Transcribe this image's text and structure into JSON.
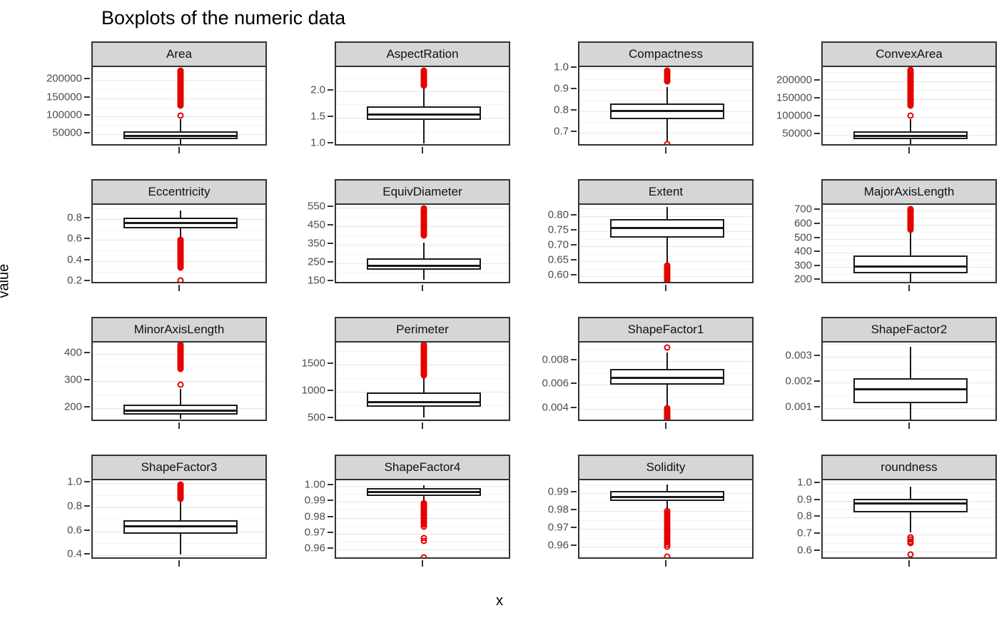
{
  "title": "Boxplots of the numeric data",
  "xlabel": "x",
  "ylabel": "value",
  "chart_data": {
    "type": "boxplot-facets",
    "title": "Boxplots of the numeric data",
    "xlabel": "x",
    "ylabel": "value",
    "layout": {
      "rows": 4,
      "cols": 4,
      "scales": "free_y",
      "grid": true,
      "strip_fill": "#d6d6d6"
    },
    "outlier_color": "#e60000",
    "box_fill": "#ffffff",
    "box_stroke": "#1a1a1a",
    "facets": [
      {
        "name": "Area",
        "range": [
          15000,
          236000
        ],
        "ticks": [
          50000,
          100000,
          150000,
          200000
        ],
        "tick_labels": [
          "50000",
          "100000",
          "150000",
          "200000"
        ],
        "box": {
          "q1": 36500,
          "median": 45500,
          "q3": 58000,
          "whisker_low": 20000,
          "whisker_high": 92000
        },
        "outlier_singles": [
          101000
        ],
        "outlier_clusters": [
          {
            "from": 130000,
            "to": 227000,
            "count": 30
          }
        ]
      },
      {
        "name": "AspectRation",
        "range": [
          0.95,
          2.45
        ],
        "ticks": [
          1.0,
          1.5,
          2.0
        ],
        "tick_labels": [
          "1.0",
          "1.5",
          "2.0"
        ],
        "box": {
          "q1": 1.46,
          "median": 1.555,
          "q3": 1.71,
          "whisker_low": 1.02,
          "whisker_high": 2.07
        },
        "outlier_singles": [],
        "outlier_clusters": [
          {
            "from": 2.1,
            "to": 2.38,
            "count": 18
          }
        ]
      },
      {
        "name": "Compactness",
        "range": [
          0.633,
          1.006
        ],
        "ticks": [
          0.7,
          0.8,
          0.9,
          1.0
        ],
        "tick_labels": [
          "0.7",
          "0.8",
          "0.9",
          "1.0"
        ],
        "box": {
          "q1": 0.762,
          "median": 0.8,
          "q3": 0.835,
          "whisker_low": 0.658,
          "whisker_high": 0.912
        },
        "outlier_singles": [
          0.645
        ],
        "outlier_clusters": [
          {
            "from": 0.939,
            "to": 0.99,
            "count": 10
          }
        ]
      },
      {
        "name": "ConvexArea",
        "range": [
          15000,
          240000
        ],
        "ticks": [
          50000,
          100000,
          150000,
          200000
        ],
        "tick_labels": [
          "50000",
          "100000",
          "150000",
          "200000"
        ],
        "box": {
          "q1": 37000,
          "median": 46500,
          "q3": 60000,
          "whisker_low": 20500,
          "whisker_high": 94000
        },
        "outlier_singles": [
          103500
        ],
        "outlier_clusters": [
          {
            "from": 132000,
            "to": 231000,
            "count": 30
          }
        ]
      },
      {
        "name": "Eccentricity",
        "range": [
          0.175,
          0.935
        ],
        "ticks": [
          0.2,
          0.4,
          0.6,
          0.8
        ],
        "tick_labels": [
          "0.2",
          "0.4",
          "0.6",
          "0.8"
        ],
        "box": {
          "q1": 0.713,
          "median": 0.765,
          "q3": 0.81,
          "whisker_low": 0.62,
          "whisker_high": 0.878
        },
        "outlier_singles": [
          0.219
        ],
        "outlier_clusters": [
          {
            "from": 0.335,
            "to": 0.602,
            "count": 22
          }
        ]
      },
      {
        "name": "EquivDiameter",
        "range": [
          135,
          565
        ],
        "ticks": [
          150,
          250,
          350,
          450,
          550
        ],
        "tick_labels": [
          "150",
          "250",
          "350",
          "450",
          "550"
        ],
        "box": {
          "q1": 215,
          "median": 238,
          "q3": 277,
          "whisker_low": 161,
          "whisker_high": 360
        },
        "outlier_singles": [],
        "outlier_clusters": [
          {
            "from": 400,
            "to": 546,
            "count": 25
          }
        ]
      },
      {
        "name": "Extent",
        "range": [
          0.572,
          0.838
        ],
        "ticks": [
          0.6,
          0.65,
          0.7,
          0.75,
          0.8
        ],
        "tick_labels": [
          "0.60",
          "0.65",
          "0.70",
          "0.75",
          "0.80"
        ],
        "box": {
          "q1": 0.729,
          "median": 0.76,
          "q3": 0.79,
          "whisker_low": 0.642,
          "whisker_high": 0.832
        },
        "outlier_singles": [],
        "outlier_clusters": [
          {
            "from": 0.585,
            "to": 0.637,
            "count": 12
          }
        ]
      },
      {
        "name": "MajorAxisLength",
        "range": [
          172,
          742
        ],
        "ticks": [
          200,
          300,
          400,
          500,
          600,
          700
        ],
        "tick_labels": [
          "200",
          "300",
          "400",
          "500",
          "600",
          "700"
        ],
        "box": {
          "q1": 254,
          "median": 303,
          "q3": 381,
          "whisker_low": 184,
          "whisker_high": 560
        },
        "outlier_singles": [],
        "outlier_clusters": [
          {
            "from": 563,
            "to": 713,
            "count": 22
          }
        ]
      },
      {
        "name": "MinorAxisLength",
        "range": [
          148,
          442
        ],
        "ticks": [
          200,
          300,
          400
        ],
        "tick_labels": [
          "200",
          "300",
          "400"
        ],
        "box": {
          "q1": 176,
          "median": 192,
          "q3": 213,
          "whisker_low": 160,
          "whisker_high": 271
        },
        "outlier_singles": [
          287
        ],
        "outlier_clusters": [
          {
            "from": 346,
            "to": 433,
            "count": 20
          }
        ]
      },
      {
        "name": "Perimeter",
        "range": [
          430,
          1905
        ],
        "ticks": [
          500,
          1000,
          1500
        ],
        "tick_labels": [
          "500",
          "1000",
          "1500"
        ],
        "box": {
          "q1": 715,
          "median": 800,
          "q3": 978,
          "whisker_low": 524,
          "whisker_high": 1265
        },
        "outlier_singles": [],
        "outlier_clusters": [
          {
            "from": 1300,
            "to": 1860,
            "count": 26
          }
        ]
      },
      {
        "name": "ShapeFactor1",
        "range": [
          0.00285,
          0.00955
        ],
        "ticks": [
          0.004,
          0.006,
          0.008
        ],
        "tick_labels": [
          "0.004",
          "0.006",
          "0.008"
        ],
        "box": {
          "q1": 0.006,
          "median": 0.00656,
          "q3": 0.00731,
          "whisker_low": 0.00415,
          "whisker_high": 0.0087
        },
        "outlier_singles": [
          0.00911
        ],
        "outlier_clusters": [
          {
            "from": 0.0031,
            "to": 0.00405,
            "count": 14
          }
        ]
      },
      {
        "name": "ShapeFactor2",
        "range": [
          0.00045,
          0.00355
        ],
        "ticks": [
          0.001,
          0.002,
          0.003
        ],
        "tick_labels": [
          "0.001",
          "0.002",
          "0.003"
        ],
        "box": {
          "q1": 0.00121,
          "median": 0.00173,
          "q3": 0.00216,
          "whisker_low": 0.00056,
          "whisker_high": 0.00339
        },
        "outlier_singles": [],
        "outlier_clusters": []
      },
      {
        "name": "ShapeFactor3",
        "range": [
          0.36,
          1.025
        ],
        "ticks": [
          0.4,
          0.6,
          0.8,
          1.0
        ],
        "tick_labels": [
          "0.4",
          "0.6",
          "0.8",
          "1.0"
        ],
        "box": {
          "q1": 0.581,
          "median": 0.643,
          "q3": 0.694,
          "whisker_low": 0.41,
          "whisker_high": 0.852
        },
        "outlier_singles": [],
        "outlier_clusters": [
          {
            "from": 0.868,
            "to": 0.988,
            "count": 14
          }
        ]
      },
      {
        "name": "ShapeFactor4",
        "range": [
          0.9535,
          1.0035
        ],
        "ticks": [
          0.96,
          0.97,
          0.98,
          0.99,
          1.0
        ],
        "tick_labels": [
          "0.96",
          "0.97",
          "0.98",
          "0.99",
          "1.00"
        ],
        "box": {
          "q1": 0.9937,
          "median": 0.9962,
          "q3": 0.9985,
          "whisker_low": 0.9892,
          "whisker_high": 1.0002
        },
        "outlier_singles": [
          0.9746,
          0.9672,
          0.9656,
          0.9551
        ],
        "outlier_clusters": [
          {
            "from": 0.976,
            "to": 0.989,
            "count": 16
          }
        ]
      },
      {
        "name": "Solidity",
        "range": [
          0.9525,
          0.9972
        ],
        "ticks": [
          0.96,
          0.97,
          0.98,
          0.99
        ],
        "tick_labels": [
          "0.96",
          "0.97",
          "0.98",
          "0.99"
        ],
        "box": {
          "q1": 0.9857,
          "median": 0.9879,
          "q3": 0.9911,
          "whisker_low": 0.9802,
          "whisker_high": 0.9947
        },
        "outlier_singles": [
          0.9546
        ],
        "outlier_clusters": [
          {
            "from": 0.9602,
            "to": 0.98,
            "count": 20
          }
        ]
      },
      {
        "name": "roundness",
        "range": [
          0.548,
          1.022
        ],
        "ticks": [
          0.6,
          0.7,
          0.8,
          0.9,
          1.0
        ],
        "tick_labels": [
          "0.6",
          "0.7",
          "0.8",
          "0.9",
          "1.0"
        ],
        "box": {
          "q1": 0.832,
          "median": 0.884,
          "q3": 0.91,
          "whisker_low": 0.714,
          "whisker_high": 0.984
        },
        "outlier_singles": [
          0.685,
          0.672,
          0.66,
          0.651,
          0.58
        ],
        "outlier_clusters": []
      }
    ]
  }
}
